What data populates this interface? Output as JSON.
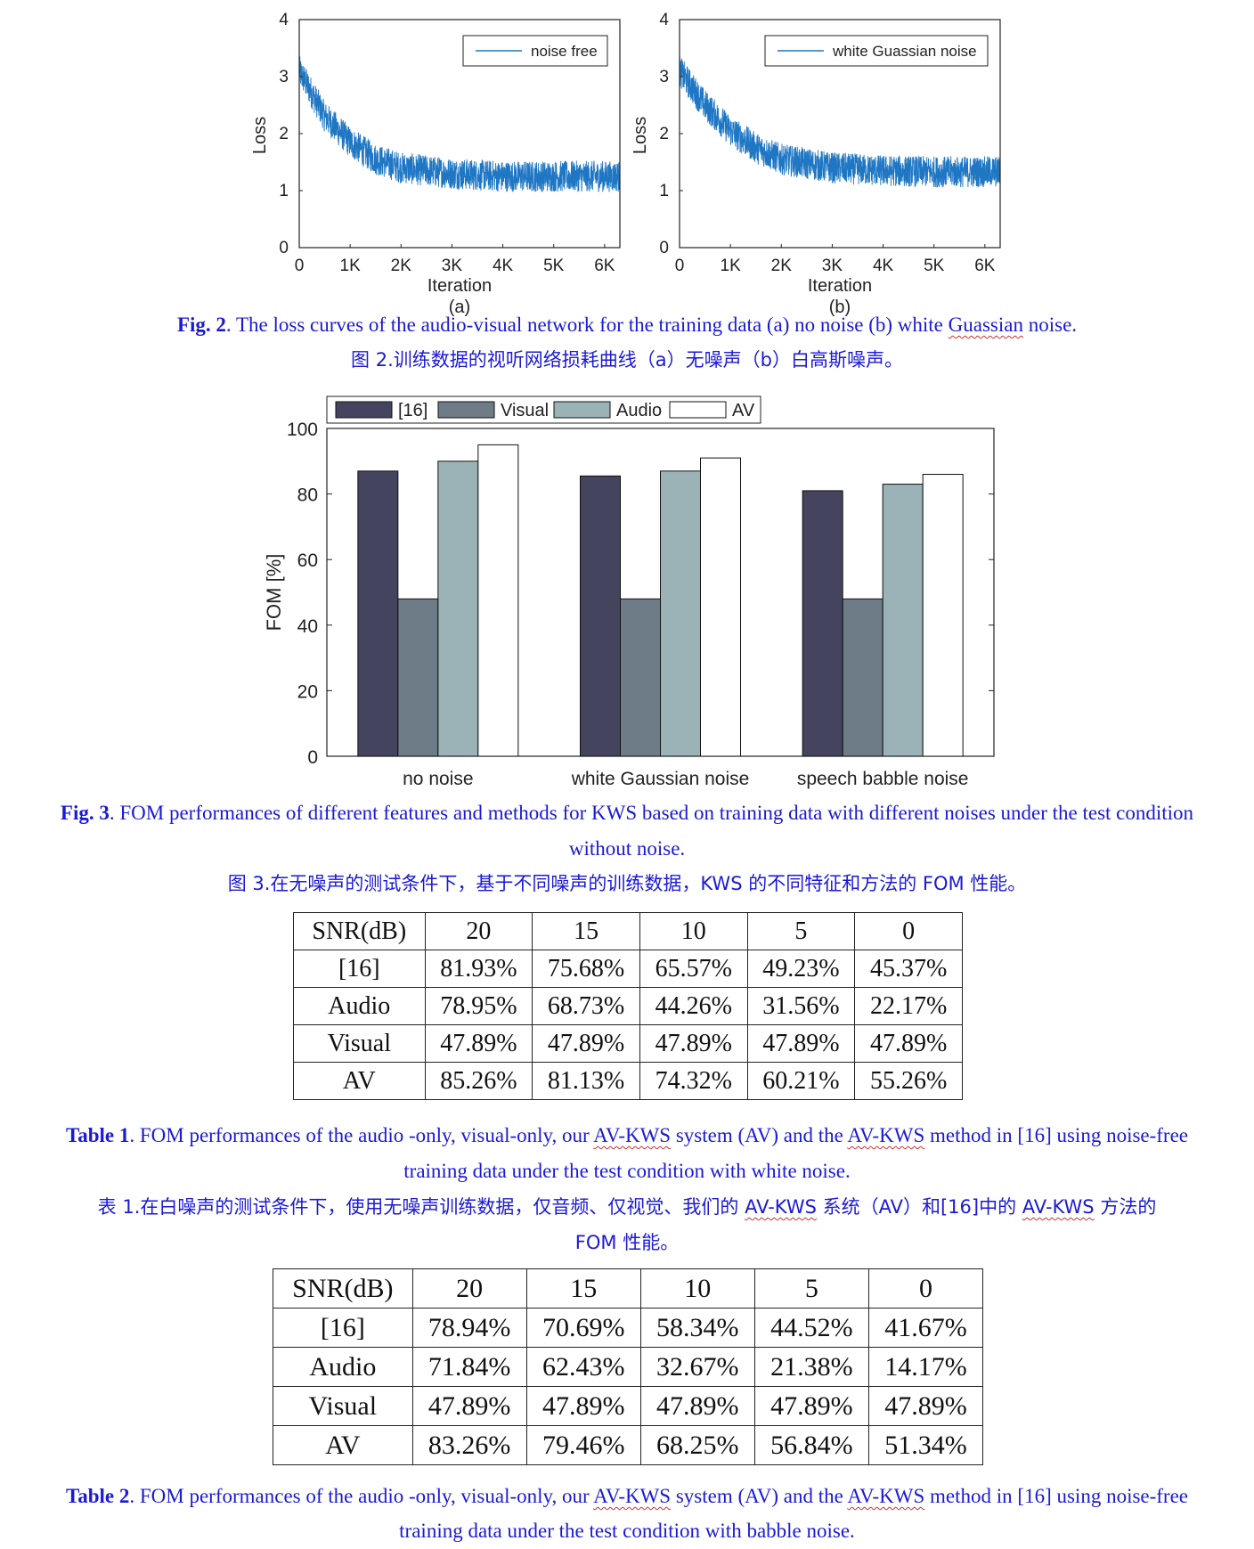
{
  "fig2": {
    "panels": [
      {
        "label": "(a)",
        "legend": "noise free",
        "xlabel": "Iteration",
        "ylabel": "Loss",
        "xticks": [
          "0",
          "1K",
          "2K",
          "3K",
          "4K",
          "5K",
          "6K"
        ],
        "yticks": [
          "0",
          "1",
          "2",
          "3",
          "4"
        ]
      },
      {
        "label": "(b)",
        "legend": "white Guassian noise",
        "xlabel": "Iteration",
        "ylabel": "Loss",
        "xticks": [
          "0",
          "1K",
          "2K",
          "3K",
          "4K",
          "5K",
          "6K"
        ],
        "yticks": [
          "0",
          "1",
          "2",
          "3",
          "4"
        ]
      }
    ],
    "caption_label": "Fig. 2",
    "caption_text": ". The loss curves of the audio-visual network for the training data (a) no noise (b) white ",
    "caption_wavy": "Guassian",
    "caption_end": " noise.",
    "caption_zh": "图 2.训练数据的视听网络损耗曲线（a）无噪声（b）白高斯噪声。"
  },
  "chart_data": [
    {
      "type": "line",
      "title": "",
      "legend": [
        "noise free"
      ],
      "xlabel": "Iteration",
      "ylabel": "Loss",
      "xlim": [
        0,
        6300
      ],
      "ylim": [
        0,
        4
      ],
      "x": [
        0,
        250,
        500,
        1000,
        1500,
        2000,
        3000,
        4000,
        5000,
        6300
      ],
      "series": [
        {
          "name": "noise free",
          "values": [
            3.1,
            2.7,
            2.3,
            1.85,
            1.55,
            1.4,
            1.3,
            1.25,
            1.25,
            1.25
          ]
        }
      ]
    },
    {
      "type": "line",
      "title": "",
      "legend": [
        "white Guassian noise"
      ],
      "xlabel": "Iteration",
      "ylabel": "Loss",
      "xlim": [
        0,
        6300
      ],
      "ylim": [
        0,
        4
      ],
      "x": [
        0,
        250,
        500,
        1000,
        1500,
        2000,
        3000,
        4000,
        5000,
        6300
      ],
      "series": [
        {
          "name": "white Guassian noise",
          "values": [
            3.1,
            2.8,
            2.5,
            2.05,
            1.75,
            1.55,
            1.4,
            1.35,
            1.33,
            1.33
          ]
        }
      ]
    },
    {
      "type": "bar",
      "title": "",
      "ylabel": "FOM [%]",
      "ylim": [
        0,
        100
      ],
      "yticks": [
        "0",
        "20",
        "40",
        "60",
        "80",
        "100"
      ],
      "categories": [
        "no noise",
        "white Gaussian noise",
        "speech babble noise"
      ],
      "series": [
        {
          "name": "[16]",
          "color": "#44445e",
          "values": [
            87,
            85.5,
            81
          ]
        },
        {
          "name": "Visual",
          "color": "#6e7c88",
          "values": [
            48,
            48,
            48
          ]
        },
        {
          "name": "Audio",
          "color": "#9bb3b6",
          "values": [
            90,
            87,
            83
          ]
        },
        {
          "name": "AV",
          "color": "#ffffff",
          "values": [
            95,
            91,
            86
          ]
        }
      ],
      "legend_position": "top"
    }
  ],
  "fig3": {
    "caption_label": "Fig. 3",
    "caption_text_1": ". FOM performances of different features and methods for KWS based on training data with different noises under the test condition",
    "caption_text_2": "without noise.",
    "caption_zh": "图 3.在无噪声的测试条件下，基于不同噪声的训练数据，KWS 的不同特征和方法的 FOM 性能。"
  },
  "table1": {
    "header": [
      "SNR(dB)",
      "20",
      "15",
      "10",
      "5",
      "0"
    ],
    "rows": [
      [
        "[16]",
        "81.93%",
        "75.68%",
        "65.57%",
        "49.23%",
        "45.37%"
      ],
      [
        "Audio",
        "78.95%",
        "68.73%",
        "44.26%",
        "31.56%",
        "22.17%"
      ],
      [
        "Visual",
        "47.89%",
        "47.89%",
        "47.89%",
        "47.89%",
        "47.89%"
      ],
      [
        "AV",
        "85.26%",
        "81.13%",
        "74.32%",
        "60.21%",
        "55.26%"
      ]
    ],
    "caption_label": "Table 1",
    "caption_p1": ". FOM performances of the audio -only, visual-only, our ",
    "caption_w1": "AV-KWS",
    "caption_p2": " system (AV) and the ",
    "caption_w2": "AV-KWS",
    "caption_p3": " method in [16] using noise-free",
    "caption_line2": "training data under the test condition with white noise.",
    "caption_zh_p1": "表 1.在白噪声的测试条件下，使用无噪声训练数据，仅音频、仅视觉、我们的 ",
    "caption_zh_w1": "AV-KWS",
    "caption_zh_p2": " 系统（AV）和[16]中的 ",
    "caption_zh_w2": "AV-KWS",
    "caption_zh_p3": " 方法的",
    "caption_zh_line2": "FOM 性能。"
  },
  "table2": {
    "header": [
      "SNR(dB)",
      "20",
      "15",
      "10",
      "5",
      "0"
    ],
    "rows": [
      [
        "[16]",
        "78.94%",
        "70.69%",
        "58.34%",
        "44.52%",
        "41.67%"
      ],
      [
        "Audio",
        "71.84%",
        "62.43%",
        "32.67%",
        "21.38%",
        "14.17%"
      ],
      [
        "Visual",
        "47.89%",
        "47.89%",
        "47.89%",
        "47.89%",
        "47.89%"
      ],
      [
        "AV",
        "83.26%",
        "79.46%",
        "68.25%",
        "56.84%",
        "51.34%"
      ]
    ],
    "caption_label": "Table 2",
    "caption_p1": ". FOM performances of the audio -only, visual-only, our ",
    "caption_w1": "AV-KWS",
    "caption_p2": " system (AV) and the ",
    "caption_w2": "AV-KWS",
    "caption_p3": " method in [16] using noise-free",
    "caption_line2": "training data under the test condition with babble noise."
  }
}
